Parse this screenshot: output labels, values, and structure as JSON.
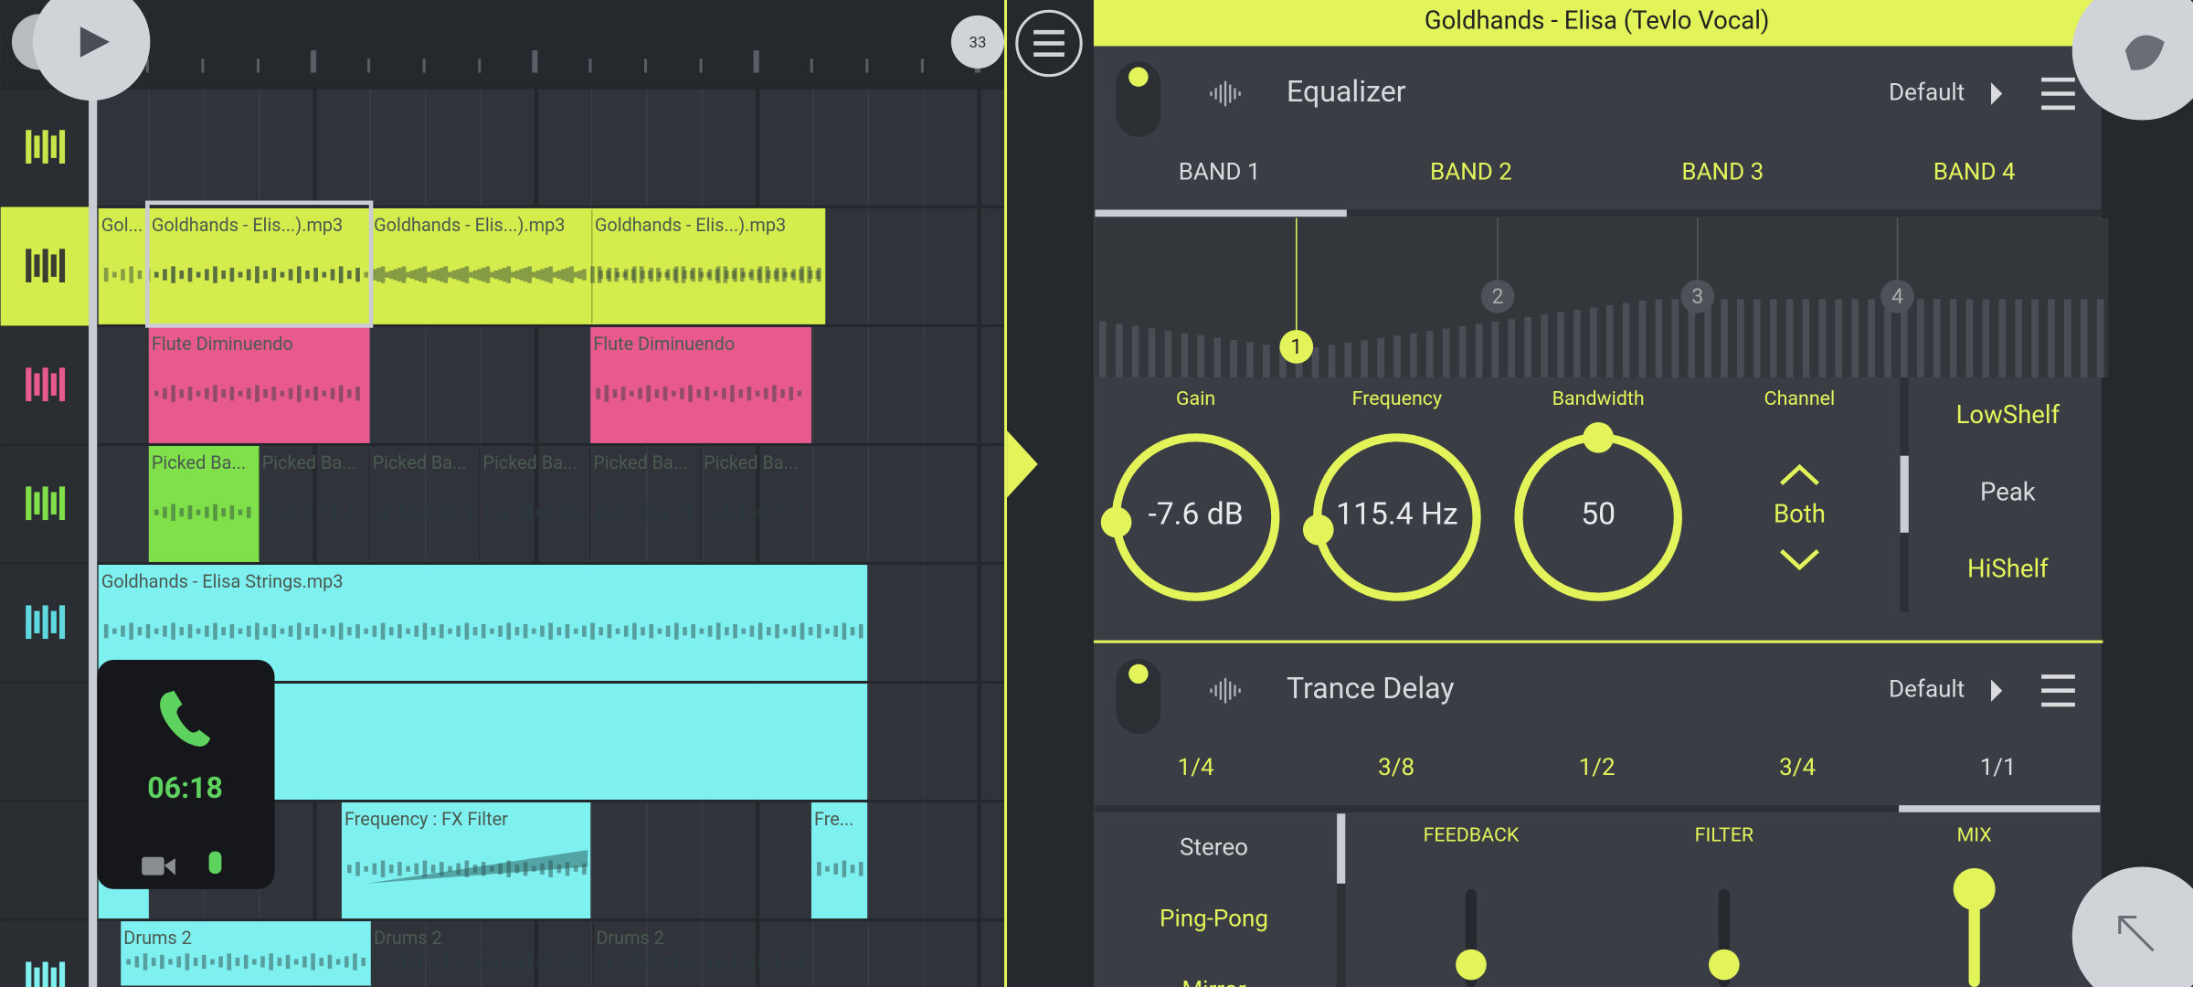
{
  "playlist": {
    "bar_number": "33",
    "clips": [
      "Gol...",
      "Goldhands - Elis...).mp3",
      "Goldhands - Elis...).mp3",
      "Goldhands - Elis...).mp3",
      "Flute Diminuendo",
      "Flute Diminuendo",
      "Picked Ba...",
      "Picked Ba...",
      "Picked Ba...",
      "Picked Ba...",
      "Picked Ba...",
      "Picked Ba...",
      "Goldhands - Elisa Strings.mp3",
      "Frequency : FX Filter",
      "Fre...",
      "Drums 2",
      "Drums 2",
      "Drums 2"
    ],
    "call_time": "06:18"
  },
  "track_title": "Goldhands - Elisa (Tevlo Vocal)",
  "equalizer": {
    "title": "Equalizer",
    "preset": "Default",
    "bands": [
      "BAND 1",
      "BAND 2",
      "BAND 3",
      "BAND 4"
    ],
    "band_markers": [
      "1",
      "2",
      "3",
      "4"
    ],
    "params": [
      {
        "label": "Gain",
        "value": "-7.6 dB"
      },
      {
        "label": "Frequency",
        "value": "115.4 Hz"
      },
      {
        "label": "Bandwidth",
        "value": "50"
      }
    ],
    "channel": {
      "label": "Channel",
      "value": "Both"
    },
    "shapes": [
      "LowShelf",
      "Peak",
      "HiShelf"
    ]
  },
  "delay": {
    "title": "Trance Delay",
    "preset": "Default",
    "times": [
      "1/4",
      "3/8",
      "1/2",
      "3/4",
      "1/1"
    ],
    "modes": [
      "Stereo",
      "Ping-Pong",
      "Mirror"
    ],
    "sliders": [
      "FEEDBACK",
      "FILTER",
      "MIX"
    ]
  }
}
